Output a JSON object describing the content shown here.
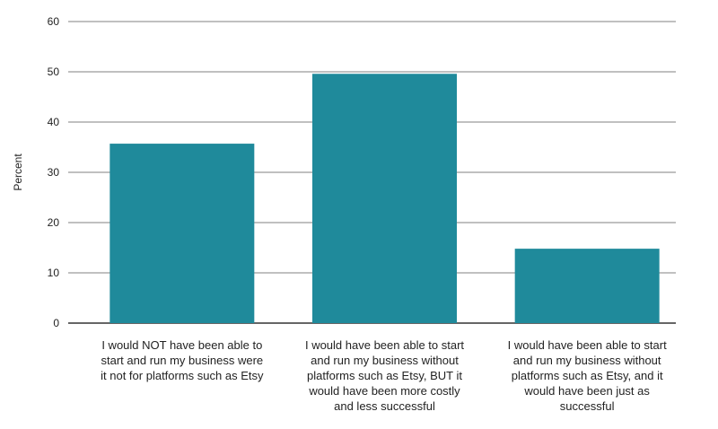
{
  "chart_data": {
    "type": "bar",
    "title": "",
    "xlabel": "",
    "ylabel": "Percent",
    "ylim": [
      0,
      60
    ],
    "yticks": [
      0,
      10,
      20,
      30,
      40,
      50,
      60
    ],
    "grid": true,
    "bar_color": "#1f8a9b",
    "categories": [
      "I would NOT have been able to start and run my business were it not for platforms such as Etsy",
      "I would have been able to start and run my business without platforms such as Etsy, BUT it would have been more costly and less successful",
      "I would have been able to start and run my business without platforms such as Etsy, and it would have been just as successful"
    ],
    "values": [
      35.7,
      49.6,
      14.8
    ]
  }
}
